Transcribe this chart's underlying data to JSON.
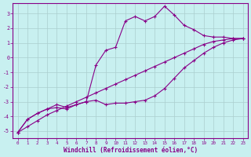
{
  "xlabel": "Windchill (Refroidissement éolien,°C)",
  "background_color": "#c8f0f0",
  "line_color": "#880088",
  "grid_color": "#aacece",
  "xlim": [
    -0.5,
    23.5
  ],
  "ylim": [
    -5.5,
    3.7
  ],
  "yticks": [
    -5,
    -4,
    -3,
    -2,
    -1,
    0,
    1,
    2,
    3
  ],
  "xticks": [
    0,
    1,
    2,
    3,
    4,
    5,
    6,
    7,
    8,
    9,
    10,
    11,
    12,
    13,
    14,
    15,
    16,
    17,
    18,
    19,
    20,
    21,
    22,
    23
  ],
  "line_straight_x": [
    0,
    1,
    2,
    3,
    4,
    5,
    6,
    7,
    8,
    9,
    10,
    11,
    12,
    13,
    14,
    15,
    16,
    17,
    18,
    19,
    20,
    21,
    22,
    23
  ],
  "line_straight_y": [
    -5.1,
    -4.7,
    -4.3,
    -3.9,
    -3.6,
    -3.3,
    -3.0,
    -2.7,
    -2.4,
    -2.1,
    -1.8,
    -1.5,
    -1.2,
    -0.9,
    -0.6,
    -0.3,
    0.0,
    0.3,
    0.6,
    0.9,
    1.1,
    1.2,
    1.3,
    1.3
  ],
  "line_mid_x": [
    0,
    1,
    2,
    3,
    4,
    5,
    6,
    7,
    8,
    9,
    10,
    11,
    12,
    13,
    14,
    15,
    16,
    17,
    18,
    19,
    20,
    21,
    22,
    23
  ],
  "line_mid_y": [
    -5.1,
    -4.2,
    -3.8,
    -3.5,
    -3.2,
    -3.4,
    -3.2,
    -3.0,
    -2.9,
    -3.2,
    -3.1,
    -3.1,
    -3.0,
    -2.9,
    -2.6,
    -2.1,
    -1.4,
    -0.7,
    -0.2,
    0.3,
    0.7,
    1.0,
    1.2,
    1.3
  ],
  "line_wavy_x": [
    0,
    1,
    2,
    3,
    4,
    5,
    6,
    7,
    8,
    9,
    10,
    11,
    12,
    13,
    14,
    15,
    16,
    17,
    18,
    19,
    20,
    21,
    22,
    23
  ],
  "line_wavy_y": [
    -5.1,
    -4.2,
    -3.8,
    -3.5,
    -3.4,
    -3.5,
    -3.2,
    -3.0,
    -0.5,
    0.5,
    0.7,
    2.5,
    2.8,
    2.5,
    2.8,
    3.5,
    2.9,
    2.2,
    1.9,
    1.5,
    1.4,
    1.4,
    1.3,
    1.3
  ]
}
